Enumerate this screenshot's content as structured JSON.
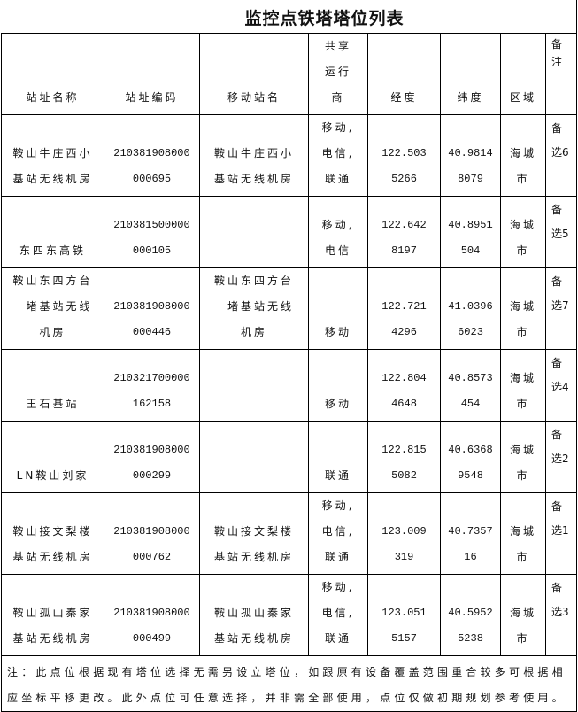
{
  "title": "监控点铁塔塔位列表",
  "columns": [
    "站址名称",
    "站址编码",
    "移动站名",
    "共享运行商",
    "经度",
    "纬度",
    "区域",
    "备注"
  ],
  "rows": [
    {
      "name": "鞍山牛庄西小基站无线机房",
      "code": "210381908000000695",
      "mobile_name": "鞍山牛庄西小基站无线机房",
      "operators": "移动,电信,联通",
      "lng": "122.5035266",
      "lat": "40.98148079",
      "region": "海城市",
      "remark": "备选6"
    },
    {
      "name": "东四东高铁",
      "code": "210381500000000105",
      "mobile_name": "",
      "operators": "移动,电信",
      "lng": "122.6428197",
      "lat": "40.8951504",
      "region": "海城市",
      "remark": "备选5"
    },
    {
      "name": "鞍山东四方台一堵基站无线机房",
      "code": "210381908000000446",
      "mobile_name": "鞍山东四方台一堵基站无线机房",
      "operators": "移动",
      "lng": "122.7214296",
      "lat": "41.03966023",
      "region": "海城市",
      "remark": "备选7"
    },
    {
      "name": "王石基站",
      "code": "210321700000162158",
      "mobile_name": "",
      "operators": "移动",
      "lng": "122.8044648",
      "lat": "40.8573454",
      "region": "海城市",
      "remark": "备选4"
    },
    {
      "name": "LN鞍山刘家",
      "code": "210381908000000299",
      "mobile_name": "",
      "operators": "联通",
      "lng": "122.8155082",
      "lat": "40.63689548",
      "region": "海城市",
      "remark": "备选2"
    },
    {
      "name": "鞍山接文梨楼基站无线机房",
      "code": "210381908000000762",
      "mobile_name": "鞍山接文梨楼基站无线机房",
      "operators": "移动,电信,联通",
      "lng": "123.009319",
      "lat": "40.735716",
      "region": "海城市",
      "remark": "备选1"
    },
    {
      "name": "鞍山孤山秦家基站无线机房",
      "code": "210381908000000499",
      "mobile_name": "鞍山孤山秦家基站无线机房",
      "operators": "移动,电信,联通",
      "lng": "123.0515157",
      "lat": "40.59525238",
      "region": "海城市",
      "remark": "备选3"
    }
  ],
  "note": "注：此点位根据现有塔位选择无需另设立塔位，如跟原有设备覆盖范围重合较多可根据相应坐标平移更改。此外点位可任意选择，并非需全部使用，点位仅做初期规划参考使用。"
}
